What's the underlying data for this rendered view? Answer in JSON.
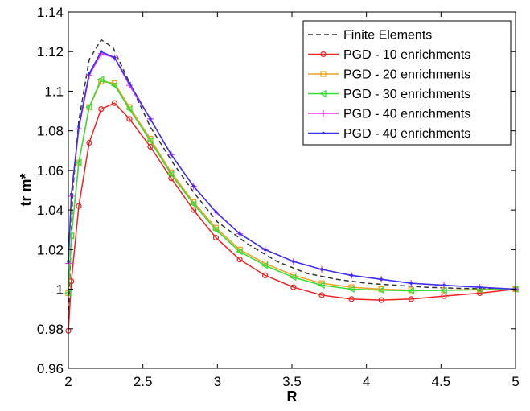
{
  "chart_data": {
    "type": "line",
    "xlabel": "R",
    "ylabel": "tr m*",
    "xlim": [
      2,
      5
    ],
    "ylim": [
      0.96,
      1.14
    ],
    "xticks": [
      2,
      2.5,
      3,
      3.5,
      4,
      4.5,
      5
    ],
    "xtick_labels": [
      "2",
      "2.5",
      "3",
      "3.5",
      "4",
      "4.5",
      "5"
    ],
    "yticks": [
      0.96,
      0.98,
      1.0,
      1.02,
      1.04,
      1.06,
      1.08,
      1.1,
      1.12,
      1.14
    ],
    "ytick_labels": [
      "0.96",
      "0.98",
      "1",
      "1.02",
      "1.04",
      "1.06",
      "1.08",
      "1.1",
      "1.12",
      "1.14"
    ],
    "grid": false,
    "legend_position": "top-right",
    "series": [
      {
        "name": "Finite Elements",
        "color": "#333333",
        "style": "dashed",
        "marker": "none",
        "x": [
          2.0,
          2.03,
          2.07,
          2.14,
          2.22,
          2.3,
          2.4,
          2.55,
          2.7,
          2.85,
          3.0,
          3.2,
          3.4,
          3.6,
          3.8,
          4.0,
          4.2,
          4.4,
          4.6,
          4.8,
          5.0
        ],
        "y": [
          0.985,
          1.05,
          1.085,
          1.116,
          1.126,
          1.122,
          1.106,
          1.082,
          1.064,
          1.048,
          1.034,
          1.023,
          1.014,
          1.008,
          1.005,
          1.003,
          1.002,
          1.001,
          1.0005,
          1.0002,
          1.0
        ]
      },
      {
        "name": "PGD - 10 enrichments",
        "color": "#ee2222",
        "style": "solid",
        "marker": "circle",
        "x": [
          2.0,
          2.02,
          2.07,
          2.14,
          2.22,
          2.31,
          2.41,
          2.55,
          2.69,
          2.84,
          2.99,
          3.15,
          3.32,
          3.51,
          3.7,
          3.9,
          4.1,
          4.3,
          4.52,
          4.76,
          5.0
        ],
        "y": [
          0.979,
          1.004,
          1.042,
          1.074,
          1.091,
          1.094,
          1.086,
          1.072,
          1.056,
          1.04,
          1.026,
          1.015,
          1.007,
          1.001,
          0.997,
          0.995,
          0.9945,
          0.995,
          0.9965,
          0.998,
          1.0
        ]
      },
      {
        "name": "PGD - 20 enrichments",
        "color": "#f0a020",
        "style": "solid",
        "marker": "square",
        "x": [
          2.0,
          2.02,
          2.07,
          2.14,
          2.22,
          2.31,
          2.41,
          2.55,
          2.69,
          2.84,
          2.99,
          3.15,
          3.32,
          3.51,
          3.7,
          3.9,
          4.1,
          4.3,
          4.52,
          4.76,
          5.0
        ],
        "y": [
          0.998,
          1.027,
          1.064,
          1.092,
          1.105,
          1.104,
          1.092,
          1.076,
          1.059,
          1.044,
          1.031,
          1.02,
          1.013,
          1.007,
          1.003,
          1.001,
          1.0,
          0.9995,
          0.9995,
          0.9998,
          1.0
        ]
      },
      {
        "name": "PGD - 30 enrichments",
        "color": "#33dd33",
        "style": "solid",
        "marker": "triangle-left",
        "x": [
          2.0,
          2.02,
          2.07,
          2.14,
          2.22,
          2.31,
          2.41,
          2.55,
          2.69,
          2.84,
          2.99,
          3.15,
          3.32,
          3.51,
          3.7,
          3.9,
          4.1,
          4.3,
          4.52,
          4.76,
          5.0
        ],
        "y": [
          0.998,
          1.027,
          1.064,
          1.092,
          1.106,
          1.103,
          1.091,
          1.075,
          1.058,
          1.043,
          1.03,
          1.019,
          1.012,
          1.006,
          1.002,
          1.0,
          0.9995,
          0.9992,
          0.9994,
          0.9997,
          1.0
        ]
      },
      {
        "name": "PGD - 40 enrichments",
        "color": "#ee33ee",
        "style": "solid",
        "marker": "plus",
        "x": [
          2.0,
          2.02,
          2.07,
          2.14,
          2.22,
          2.31,
          2.41,
          2.55,
          2.69,
          2.84,
          2.99,
          3.15,
          3.32,
          3.51,
          3.7,
          3.9,
          4.1,
          4.3,
          4.52,
          4.76,
          5.0
        ],
        "y": [
          1.013,
          1.047,
          1.081,
          1.108,
          1.119,
          1.117,
          1.103,
          1.086,
          1.068,
          1.052,
          1.039,
          1.028,
          1.02,
          1.014,
          1.01,
          1.007,
          1.005,
          1.003,
          1.002,
          1.001,
          1.0
        ]
      },
      {
        "name": "PGD - 40 enrichments",
        "color": "#3333ee",
        "style": "solid",
        "marker": "dot",
        "x": [
          2.0,
          2.02,
          2.07,
          2.14,
          2.22,
          2.31,
          2.41,
          2.55,
          2.69,
          2.84,
          2.99,
          3.15,
          3.32,
          3.51,
          3.7,
          3.9,
          4.1,
          4.3,
          4.52,
          4.76,
          5.0
        ],
        "y": [
          1.014,
          1.048,
          1.082,
          1.109,
          1.12,
          1.117,
          1.104,
          1.086,
          1.068,
          1.052,
          1.039,
          1.028,
          1.02,
          1.014,
          1.01,
          1.007,
          1.005,
          1.003,
          1.002,
          1.001,
          1.0
        ]
      }
    ]
  }
}
